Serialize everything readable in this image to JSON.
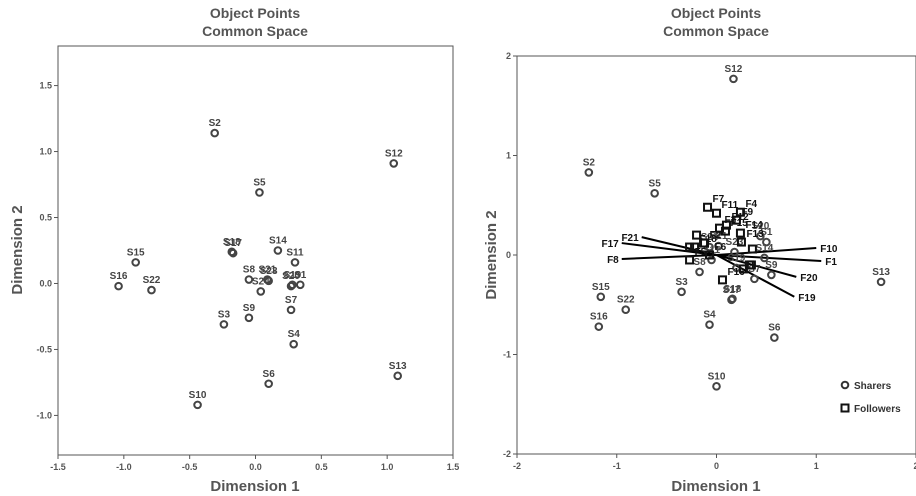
{
  "chart_data": [
    {
      "type": "scatter",
      "title_line1": "Object Points",
      "title_line2": "Common Space",
      "xlabel": "Dimension 1",
      "ylabel": "Dimension 2",
      "xlim": [
        -1.5,
        1.5
      ],
      "ylim": [
        -1.3,
        1.8
      ],
      "xticks": [
        "-1.5",
        "-1.0",
        "-0.5",
        "0.0",
        "0.5",
        "1.0",
        "1.5"
      ],
      "xtick_values": [
        -1.5,
        -1.0,
        -0.5,
        0.0,
        0.5,
        1.0,
        1.5
      ],
      "yticks": [
        "-1.0",
        "-0.5",
        "0.0",
        "0.5",
        "1.0",
        "1.5"
      ],
      "ytick_values": [
        -1.0,
        -0.5,
        0.0,
        0.5,
        1.0,
        1.5
      ],
      "series": [
        {
          "points": [
            {
              "label": "S1",
              "x": 0.34,
              "y": -0.01
            },
            {
              "label": "S2",
              "x": -0.31,
              "y": 1.14
            },
            {
              "label": "S3",
              "x": -0.24,
              "y": -0.31
            },
            {
              "label": "S4",
              "x": 0.29,
              "y": -0.46
            },
            {
              "label": "S5",
              "x": 0.03,
              "y": 0.69
            },
            {
              "label": "S6",
              "x": 0.1,
              "y": -0.76
            },
            {
              "label": "S7",
              "x": 0.27,
              "y": -0.2
            },
            {
              "label": "S8",
              "x": -0.05,
              "y": 0.03
            },
            {
              "label": "S9",
              "x": -0.05,
              "y": -0.26
            },
            {
              "label": "S10",
              "x": -0.44,
              "y": -0.92
            },
            {
              "label": "S11",
              "x": 0.3,
              "y": 0.16
            },
            {
              "label": "S12",
              "x": 1.05,
              "y": 0.91
            },
            {
              "label": "S13",
              "x": 1.08,
              "y": -0.7
            },
            {
              "label": "S14",
              "x": 0.17,
              "y": 0.25
            },
            {
              "label": "S15",
              "x": -0.91,
              "y": 0.16
            },
            {
              "label": "S16",
              "x": -1.04,
              "y": -0.02
            },
            {
              "label": "S17",
              "x": -0.17,
              "y": 0.23
            },
            {
              "label": "S18",
              "x": -0.18,
              "y": 0.24
            },
            {
              "label": "S19",
              "x": 0.28,
              "y": -0.01
            },
            {
              "label": "S20",
              "x": 0.27,
              "y": -0.02
            },
            {
              "label": "S21",
              "x": 0.09,
              "y": 0.03
            },
            {
              "label": "S22",
              "x": -0.79,
              "y": -0.05
            },
            {
              "label": "S23",
              "x": 0.1,
              "y": 0.02
            },
            {
              "label": "S24",
              "x": 0.04,
              "y": -0.06
            }
          ]
        }
      ]
    },
    {
      "type": "scatter",
      "title_line1": "Object Points",
      "title_line2": "Common Space",
      "xlabel": "Dimension 1",
      "ylabel": "Dimension 2",
      "xlim": [
        -2,
        2
      ],
      "ylim": [
        -2,
        2
      ],
      "xticks": [
        "-2",
        "-1",
        "0",
        "1",
        "2"
      ],
      "xtick_values": [
        -2,
        -1,
        0,
        1,
        2
      ],
      "yticks": [
        "-2",
        "-1",
        "0",
        "1",
        "2"
      ],
      "ytick_values": [
        -2,
        -1,
        0,
        1,
        2
      ],
      "legend_position": "bottom-right",
      "series": [
        {
          "name": "Sharers",
          "marker": "circle",
          "points": [
            {
              "label": "S1",
              "x": 0.5,
              "y": 0.13
            },
            {
              "label": "S2",
              "x": -1.28,
              "y": 0.83
            },
            {
              "label": "S3",
              "x": -0.35,
              "y": -0.37
            },
            {
              "label": "S4",
              "x": -0.07,
              "y": -0.7
            },
            {
              "label": "S5",
              "x": -0.62,
              "y": 0.62
            },
            {
              "label": "S6",
              "x": 0.58,
              "y": -0.83
            },
            {
              "label": "S7",
              "x": 0.38,
              "y": -0.24
            },
            {
              "label": "S8",
              "x": -0.17,
              "y": -0.17
            },
            {
              "label": "S9",
              "x": 0.55,
              "y": -0.2
            },
            {
              "label": "S10",
              "x": 0.0,
              "y": -1.32
            },
            {
              "label": "S11",
              "x": -0.05,
              "y": -0.05
            },
            {
              "label": "S12",
              "x": 0.17,
              "y": 1.77
            },
            {
              "label": "S13",
              "x": 1.65,
              "y": -0.27
            },
            {
              "label": "S14",
              "x": 0.48,
              "y": -0.03
            },
            {
              "label": "S15",
              "x": -1.16,
              "y": -0.42
            },
            {
              "label": "S16",
              "x": -1.18,
              "y": -0.72
            },
            {
              "label": "S17",
              "x": 0.15,
              "y": -0.45
            },
            {
              "label": "S18",
              "x": 0.16,
              "y": -0.44
            },
            {
              "label": "S19",
              "x": 0.2,
              "y": -0.13
            },
            {
              "label": "S20",
              "x": 0.44,
              "y": 0.19
            },
            {
              "label": "S21",
              "x": 0.02,
              "y": 0.09
            },
            {
              "label": "S22",
              "x": -0.91,
              "y": -0.55
            },
            {
              "label": "S23",
              "x": 0.18,
              "y": 0.03
            },
            {
              "label": "S24",
              "x": -0.07,
              "y": 0.08
            }
          ]
        },
        {
          "name": "Followers",
          "marker": "square",
          "points": [
            {
              "label": "F1",
              "x": 0.35,
              "y": -0.1
            },
            {
              "label": "F2",
              "x": -0.12,
              "y": 0.12
            },
            {
              "label": "F3",
              "x": 0.03,
              "y": 0.27
            },
            {
              "label": "F4",
              "x": 0.24,
              "y": 0.43
            },
            {
              "label": "F5",
              "x": -0.27,
              "y": -0.05
            },
            {
              "label": "F6",
              "x": -0.07,
              "y": 0.0
            },
            {
              "label": "F7",
              "x": -0.09,
              "y": 0.48
            },
            {
              "label": "F8",
              "x": -0.27,
              "y": 0.08
            },
            {
              "label": "F9",
              "x": 0.2,
              "y": 0.35
            },
            {
              "label": "F10",
              "x": 0.36,
              "y": 0.06
            },
            {
              "label": "F11",
              "x": 0.0,
              "y": 0.42
            },
            {
              "label": "F12",
              "x": 0.1,
              "y": 0.3
            },
            {
              "label": "F13",
              "x": 0.25,
              "y": 0.13
            },
            {
              "label": "F14",
              "x": 0.24,
              "y": 0.22
            },
            {
              "label": "F15",
              "x": 0.09,
              "y": 0.24
            },
            {
              "label": "F16",
              "x": 0.06,
              "y": -0.25
            },
            {
              "label": "F17",
              "x": -0.13,
              "y": 0.12
            },
            {
              "label": "F18",
              "x": -0.22,
              "y": 0.08
            },
            {
              "label": "F19",
              "x": 0.27,
              "y": -0.14
            },
            {
              "label": "F20",
              "x": 0.33,
              "y": -0.1
            },
            {
              "label": "F21",
              "x": -0.2,
              "y": 0.2
            }
          ]
        }
      ],
      "follower_vectors": [
        {
          "label": "F10",
          "x": 1.0,
          "y": 0.07
        },
        {
          "label": "F1",
          "x": 1.05,
          "y": -0.06
        },
        {
          "label": "F20",
          "x": 0.8,
          "y": -0.22
        },
        {
          "label": "F19",
          "x": 0.78,
          "y": -0.42
        },
        {
          "label": "F21",
          "x": -0.75,
          "y": 0.18
        },
        {
          "label": "F17",
          "x": -0.95,
          "y": 0.12
        },
        {
          "label": "F8",
          "x": -0.95,
          "y": -0.04
        }
      ]
    }
  ]
}
